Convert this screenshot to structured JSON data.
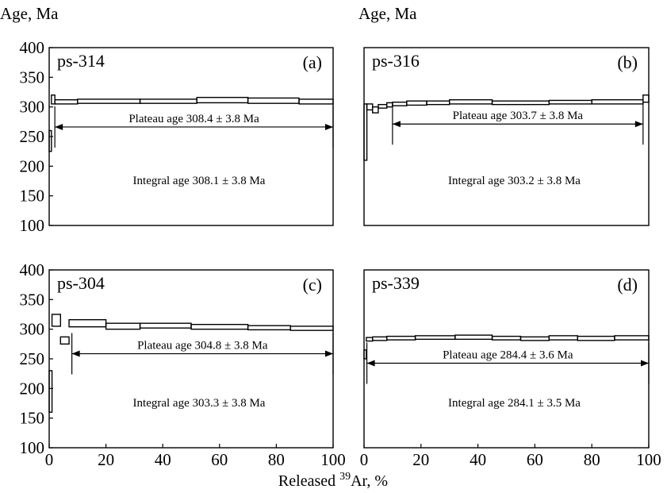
{
  "ylabel": "Age, Ma",
  "xlabel_parts": [
    "Released ",
    "39",
    "Ar, %"
  ],
  "chart_data": [
    {
      "type": "step",
      "sample": "ps-314",
      "panel": "(a)",
      "plateau_label": "Plateau age 308.4 ± 3.8 Ma",
      "integral_label": "Integral age 308.1 ± 3.8 Ma",
      "plateau_range": [
        2,
        100
      ],
      "ylim": [
        100,
        400
      ],
      "xlim": [
        0,
        100
      ],
      "xticks": [],
      "yticks": [
        "100",
        "150",
        "200",
        "250",
        "300",
        "350",
        "400"
      ],
      "steps": [
        {
          "x0": 0,
          "x1": 0.8,
          "lo": 225,
          "hi": 260
        },
        {
          "x0": 0.8,
          "x1": 2,
          "lo": 305,
          "hi": 320
        },
        {
          "x0": 2,
          "x1": 10,
          "lo": 305,
          "hi": 312
        },
        {
          "x0": 10,
          "x1": 32,
          "lo": 306,
          "hi": 313
        },
        {
          "x0": 32,
          "x1": 52,
          "lo": 306,
          "hi": 313
        },
        {
          "x0": 52,
          "x1": 70,
          "lo": 307,
          "hi": 316
        },
        {
          "x0": 70,
          "x1": 88,
          "lo": 306,
          "hi": 315
        },
        {
          "x0": 88,
          "x1": 100,
          "lo": 305,
          "hi": 313
        }
      ]
    },
    {
      "type": "step",
      "sample": "ps-316",
      "panel": "(b)",
      "plateau_label": "Plateau age 303.7 ± 3.8 Ma",
      "integral_label": "Integral age 303.2 ± 3.8 Ma",
      "plateau_range": [
        10,
        98
      ],
      "ylim": [
        100,
        400
      ],
      "xlim": [
        0,
        100
      ],
      "xticks": [],
      "yticks": [],
      "steps": [
        {
          "x0": 0,
          "x1": 1,
          "lo": 210,
          "hi": 305
        },
        {
          "x0": 1,
          "x1": 3,
          "lo": 295,
          "hi": 305
        },
        {
          "x0": 3,
          "x1": 5,
          "lo": 290,
          "hi": 300
        },
        {
          "x0": 5,
          "x1": 8,
          "lo": 298,
          "hi": 304
        },
        {
          "x0": 8,
          "x1": 10,
          "lo": 300,
          "hi": 307
        },
        {
          "x0": 10,
          "x1": 15,
          "lo": 302,
          "hi": 308
        },
        {
          "x0": 15,
          "x1": 22,
          "lo": 303,
          "hi": 310
        },
        {
          "x0": 22,
          "x1": 30,
          "lo": 304,
          "hi": 310
        },
        {
          "x0": 30,
          "x1": 45,
          "lo": 305,
          "hi": 312
        },
        {
          "x0": 45,
          "x1": 65,
          "lo": 304,
          "hi": 310
        },
        {
          "x0": 65,
          "x1": 80,
          "lo": 305,
          "hi": 311
        },
        {
          "x0": 80,
          "x1": 98,
          "lo": 305,
          "hi": 312
        },
        {
          "x0": 98,
          "x1": 100,
          "lo": 308,
          "hi": 320
        }
      ]
    },
    {
      "type": "step",
      "sample": "ps-304",
      "panel": "(c)",
      "plateau_label": "Plateau age 304.8 ± 3.8 Ma",
      "integral_label": "Integral age 303.3 ± 3.8 Ma",
      "plateau_range": [
        8,
        100
      ],
      "ylim": [
        100,
        400
      ],
      "xlim": [
        0,
        100
      ],
      "xticks": [
        "0",
        "20",
        "40",
        "60",
        "80",
        "100"
      ],
      "yticks": [
        "100",
        "150",
        "200",
        "250",
        "300",
        "350",
        "400"
      ],
      "steps": [
        {
          "x0": 0,
          "x1": 1,
          "lo": 160,
          "hi": 230
        },
        {
          "x0": 1,
          "x1": 4,
          "lo": 305,
          "hi": 325
        },
        {
          "x0": 4,
          "x1": 7,
          "lo": 275,
          "hi": 287
        },
        {
          "x0": 7,
          "x1": 20,
          "lo": 304,
          "hi": 316
        },
        {
          "x0": 20,
          "x1": 32,
          "lo": 300,
          "hi": 310
        },
        {
          "x0": 32,
          "x1": 50,
          "lo": 302,
          "hi": 310
        },
        {
          "x0": 50,
          "x1": 70,
          "lo": 300,
          "hi": 308
        },
        {
          "x0": 70,
          "x1": 85,
          "lo": 299,
          "hi": 306
        },
        {
          "x0": 85,
          "x1": 100,
          "lo": 298,
          "hi": 305
        }
      ]
    },
    {
      "type": "step",
      "sample": "ps-339",
      "panel": "(d)",
      "plateau_label": "Plateau age 284.4 ± 3.6 Ma",
      "integral_label": "Integral age 284.1 ± 3.5 Ma",
      "plateau_range": [
        1,
        100
      ],
      "ylim": [
        100,
        400
      ],
      "xlim": [
        0,
        100
      ],
      "xticks": [
        "0",
        "20",
        "40",
        "60",
        "80",
        "100"
      ],
      "yticks": [],
      "steps": [
        {
          "x0": 0,
          "x1": 0.8,
          "lo": 250,
          "hi": 265
        },
        {
          "x0": 0.8,
          "x1": 3,
          "lo": 280,
          "hi": 286
        },
        {
          "x0": 3,
          "x1": 8,
          "lo": 281,
          "hi": 287
        },
        {
          "x0": 8,
          "x1": 18,
          "lo": 282,
          "hi": 288
        },
        {
          "x0": 18,
          "x1": 32,
          "lo": 283,
          "hi": 289
        },
        {
          "x0": 32,
          "x1": 45,
          "lo": 283,
          "hi": 290
        },
        {
          "x0": 45,
          "x1": 55,
          "lo": 282,
          "hi": 288
        },
        {
          "x0": 55,
          "x1": 65,
          "lo": 281,
          "hi": 287
        },
        {
          "x0": 65,
          "x1": 75,
          "lo": 282,
          "hi": 289
        },
        {
          "x0": 75,
          "x1": 88,
          "lo": 281,
          "hi": 288
        },
        {
          "x0": 88,
          "x1": 100,
          "lo": 282,
          "hi": 289
        }
      ]
    }
  ]
}
